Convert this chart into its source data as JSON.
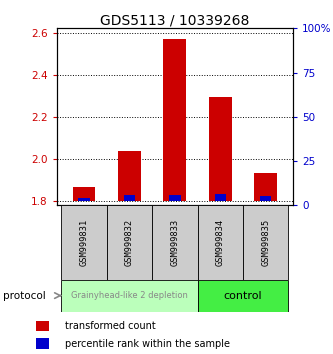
{
  "title": "GDS5113 / 10339268",
  "samples": [
    "GSM999831",
    "GSM999832",
    "GSM999833",
    "GSM999834",
    "GSM999835"
  ],
  "transformed_counts": [
    1.865,
    2.04,
    2.57,
    2.295,
    1.935
  ],
  "percentile_ranks_pct": [
    2.0,
    3.5,
    3.5,
    4.0,
    3.0
  ],
  "baseline": 1.8,
  "ylim_left": [
    1.78,
    2.62
  ],
  "yticks_left": [
    1.8,
    2.0,
    2.2,
    2.4,
    2.6
  ],
  "yticks_right_pct": [
    0,
    25,
    50,
    75,
    100
  ],
  "yright_labels": [
    "0",
    "25",
    "50",
    "75",
    "100%"
  ],
  "group1_samples": 3,
  "group1_label": "Grainyhead-like 2 depletion",
  "group1_color": "#bbffbb",
  "group1_text_color": "#888888",
  "group2_label": "control",
  "group2_color": "#44ee44",
  "group2_text_color": "#000000",
  "bar_color_red": "#cc0000",
  "bar_color_blue": "#0000cc",
  "tick_label_color_left": "#cc0000",
  "tick_label_color_right": "#0000cc",
  "title_fontsize": 10,
  "legend_red": "transformed count",
  "legend_blue": "percentile rank within the sample",
  "bar_width": 0.5,
  "blue_bar_width": 0.25
}
